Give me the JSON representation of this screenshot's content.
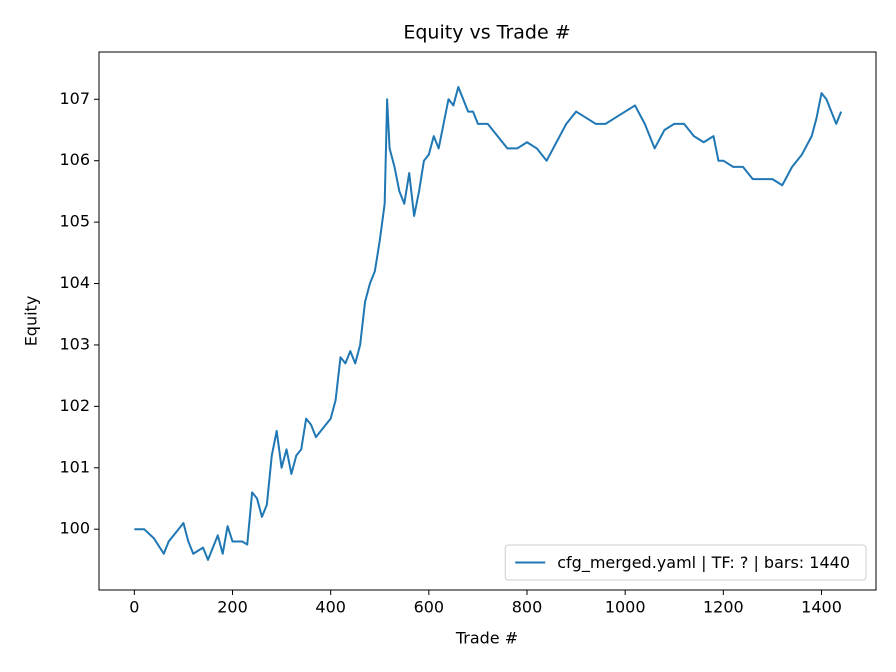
{
  "chart_data": {
    "type": "line",
    "title": "Equity vs Trade #",
    "xlabel": "Trade #",
    "ylabel": "Equity",
    "x": [
      0,
      20,
      40,
      60,
      70,
      80,
      90,
      100,
      110,
      120,
      140,
      150,
      160,
      170,
      180,
      190,
      200,
      220,
      230,
      240,
      250,
      260,
      270,
      280,
      290,
      300,
      310,
      320,
      330,
      340,
      350,
      360,
      370,
      380,
      390,
      400,
      410,
      420,
      430,
      440,
      450,
      460,
      470,
      480,
      490,
      500,
      510,
      515,
      520,
      530,
      540,
      550,
      560,
      570,
      580,
      590,
      600,
      610,
      620,
      630,
      640,
      650,
      660,
      670,
      680,
      690,
      700,
      720,
      740,
      760,
      780,
      800,
      820,
      840,
      860,
      880,
      900,
      920,
      940,
      960,
      980,
      1000,
      1020,
      1040,
      1060,
      1080,
      1100,
      1120,
      1140,
      1160,
      1180,
      1190,
      1200,
      1220,
      1240,
      1260,
      1280,
      1300,
      1320,
      1340,
      1360,
      1380,
      1390,
      1400,
      1410,
      1420,
      1430,
      1440
    ],
    "series": [
      {
        "name": "cfg_merged.yaml | TF: ? | bars: 1440",
        "color": "#1f77b4",
        "values": [
          100,
          100,
          99.85,
          99.6,
          99.8,
          99.9,
          100.0,
          100.1,
          99.8,
          99.6,
          99.7,
          99.5,
          99.7,
          99.9,
          99.6,
          100.05,
          99.8,
          99.8,
          99.75,
          100.6,
          100.5,
          100.2,
          100.4,
          101.2,
          101.6,
          101.0,
          101.3,
          100.9,
          101.2,
          101.3,
          101.8,
          101.7,
          101.5,
          101.6,
          101.7,
          101.8,
          102.1,
          102.8,
          102.7,
          102.9,
          102.7,
          103.0,
          103.7,
          104.0,
          104.2,
          104.7,
          105.3,
          107.0,
          106.2,
          105.9,
          105.5,
          105.3,
          105.8,
          105.1,
          105.5,
          106.0,
          106.1,
          106.4,
          106.2,
          106.6,
          107.0,
          106.9,
          107.2,
          107.0,
          106.8,
          106.8,
          106.6,
          106.6,
          106.4,
          106.2,
          106.2,
          106.3,
          106.2,
          106.0,
          106.3,
          106.6,
          106.8,
          106.7,
          106.6,
          106.6,
          106.7,
          106.8,
          106.9,
          106.6,
          106.2,
          106.5,
          106.6,
          106.6,
          106.4,
          106.3,
          106.4,
          106.0,
          106.0,
          105.9,
          105.9,
          105.7,
          105.7,
          105.7,
          105.6,
          105.9,
          106.1,
          106.4,
          106.7,
          107.1,
          107.0,
          106.8,
          106.6,
          106.8
        ]
      }
    ],
    "xlim": [
      -72,
      1511
    ],
    "ylim": [
      99.01,
      107.77
    ],
    "xticks": [
      0,
      200,
      400,
      600,
      800,
      1000,
      1200,
      1400
    ],
    "yticks": [
      100,
      101,
      102,
      103,
      104,
      105,
      106,
      107
    ],
    "legend": "lower right"
  }
}
